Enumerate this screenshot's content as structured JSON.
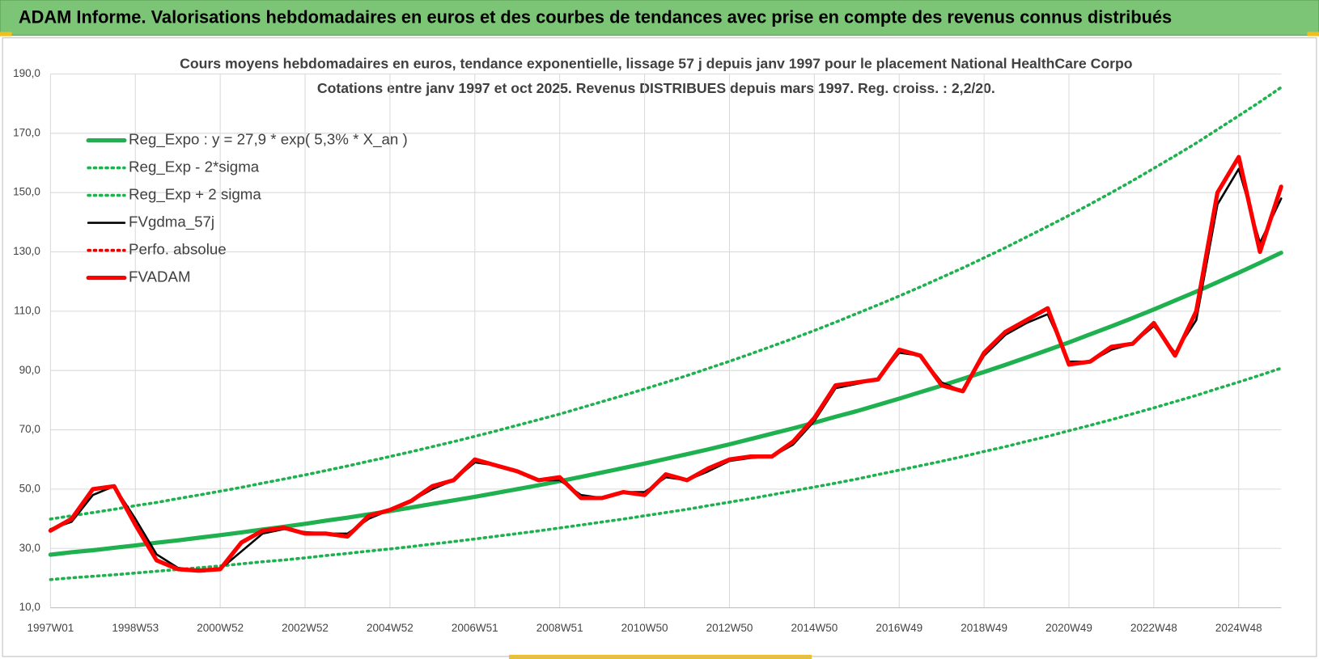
{
  "header": {
    "title": "ADAM Informe. Valorisations hebdomadaires en euros et des courbes de tendances avec prise en compte des revenus connus distribués"
  },
  "chart_data": {
    "type": "line",
    "title": "Cours moyens hebdomadaires en euros, tendance exponentielle, lissage 57 j depuis janv 1997 pour le placement National HealthCare Corpo",
    "subtitle": "Cotations entre janv 1997 et oct 2025. Revenus DISTRIBUES depuis mars 1997. Reg. croiss. : 2,2/20.",
    "categories": [
      "1997W01",
      null,
      null,
      null,
      "1998W53",
      null,
      null,
      null,
      "2000W52",
      null,
      null,
      null,
      "2002W52",
      null,
      null,
      null,
      "2004W52",
      null,
      null,
      null,
      "2006W51",
      null,
      null,
      null,
      "2008W51",
      null,
      null,
      null,
      "2010W50",
      null,
      null,
      null,
      "2012W50",
      null,
      null,
      null,
      "2014W50",
      null,
      null,
      null,
      "2016W49",
      null,
      null,
      null,
      "2018W49",
      null,
      null,
      null,
      "2020W49",
      null,
      null,
      null,
      "2022W48",
      null,
      null,
      null,
      "2024W48",
      null,
      null
    ],
    "ylim": [
      10,
      190
    ],
    "yticks": [
      {
        "value": 10,
        "label": "10,0"
      },
      {
        "value": 30,
        "label": "30,0"
      },
      {
        "value": 50,
        "label": "50,0"
      },
      {
        "value": 70,
        "label": "70,0"
      },
      {
        "value": 90,
        "label": "90,0"
      },
      {
        "value": 110,
        "label": "110,0"
      },
      {
        "value": 130,
        "label": "130,0"
      },
      {
        "value": 150,
        "label": "150,0"
      },
      {
        "value": 170,
        "label": "170,0"
      },
      {
        "value": 190,
        "label": "190,0"
      }
    ],
    "grid": true,
    "legend": "upper left",
    "series": [
      {
        "name": "Reg_Expo : y = 27,9 * exp( 5,3% *  X_an )",
        "color": "#1fb14f",
        "line_style": "thick",
        "values": [
          27.9,
          28.7,
          29.4,
          30.2,
          31.0,
          31.9,
          32.7,
          33.6,
          34.5,
          35.4,
          36.4,
          37.3,
          38.3,
          39.4,
          40.4,
          41.5,
          42.6,
          43.8,
          45.0,
          46.2,
          47.4,
          48.7,
          50.0,
          51.3,
          52.7,
          54.1,
          55.6,
          57.1,
          58.6,
          60.2,
          61.8,
          63.4,
          65.1,
          66.9,
          68.7,
          70.5,
          72.4,
          74.4,
          76.3,
          78.4,
          80.5,
          82.7,
          84.9,
          87.2,
          89.5,
          91.9,
          94.4,
          96.9,
          99.5,
          102.2,
          104.9,
          107.7,
          110.6,
          113.6,
          116.6,
          119.8,
          123.0,
          126.3,
          129.7
        ]
      },
      {
        "name": "Reg_Exp - 2*sigma",
        "color": "#1fb14f",
        "line_style": "dotted",
        "values": [
          19.5,
          20.1,
          20.6,
          21.1,
          21.7,
          22.3,
          22.9,
          23.5,
          24.1,
          24.8,
          25.5,
          26.1,
          26.8,
          27.6,
          28.3,
          29.1,
          29.8,
          30.6,
          31.5,
          32.3,
          33.2,
          34.1,
          35.0,
          35.9,
          36.9,
          37.9,
          38.9,
          39.9,
          41.0,
          42.1,
          43.2,
          44.4,
          45.6,
          46.8,
          48.1,
          49.4,
          50.7,
          52.0,
          53.4,
          54.9,
          56.4,
          57.9,
          59.4,
          61.0,
          62.7,
          64.3,
          66.1,
          67.8,
          69.7,
          71.5,
          73.4,
          75.4,
          77.4,
          79.5,
          81.6,
          83.9,
          86.1,
          88.4,
          90.8
        ]
      },
      {
        "name": "Reg_Exp + 2 sigma",
        "color": "#1fb14f",
        "line_style": "dotted",
        "values": [
          39.9,
          41.0,
          42.1,
          43.2,
          44.4,
          45.5,
          46.8,
          48.0,
          49.3,
          50.6,
          52.0,
          53.4,
          54.8,
          56.3,
          57.8,
          59.4,
          61.0,
          62.6,
          64.3,
          66.0,
          67.8,
          69.6,
          71.5,
          73.4,
          75.3,
          77.4,
          79.5,
          81.6,
          83.8,
          86.0,
          88.3,
          90.7,
          93.1,
          95.6,
          98.2,
          100.8,
          103.5,
          106.3,
          109.2,
          112.1,
          115.1,
          118.2,
          121.4,
          124.6,
          128.0,
          131.4,
          135.0,
          138.6,
          142.3,
          146.1,
          150.0,
          154.0,
          158.2,
          162.4,
          166.7,
          171.3,
          175.9,
          180.6,
          185.5
        ]
      },
      {
        "name": "FVgdma_57j",
        "color": "#000000",
        "line_style": "solid",
        "values": [
          36.5,
          39,
          48,
          51,
          40,
          28,
          23.5,
          22.5,
          23,
          29,
          35,
          36.5,
          35.5,
          35,
          35,
          40,
          43,
          46,
          50,
          53,
          59,
          58,
          56,
          53,
          53,
          48,
          47,
          49,
          49,
          54,
          53,
          56,
          59.5,
          60.5,
          61,
          65,
          73,
          84,
          85.5,
          87,
          96,
          95,
          86,
          83,
          95,
          102,
          106,
          109,
          93,
          93,
          97,
          99,
          105,
          96,
          107,
          146,
          158,
          133,
          148
        ]
      },
      {
        "name": "Perfo. absolue",
        "color": "#e00000",
        "line_style": "dotted",
        "values": [
          null,
          null,
          null,
          null,
          null,
          null,
          null,
          null,
          null,
          null,
          null,
          null,
          null,
          null,
          null,
          null,
          null,
          null,
          null,
          null,
          null,
          null,
          null,
          null,
          null,
          null,
          null,
          null,
          null,
          null,
          null,
          null,
          null,
          null,
          null,
          null,
          null,
          null,
          null,
          null,
          null,
          null,
          null,
          null,
          null,
          null,
          null,
          null,
          null,
          null,
          null,
          null,
          null,
          null,
          null,
          null,
          null,
          null,
          null
        ]
      },
      {
        "name": "FVADAM",
        "color": "#ff0000",
        "line_style": "thick",
        "values": [
          36,
          40,
          50,
          51,
          38,
          26,
          23,
          22.5,
          23,
          32,
          36,
          37,
          35,
          35,
          34,
          41,
          43,
          46,
          51,
          53,
          60,
          58,
          56,
          53,
          54,
          47,
          47,
          49,
          48,
          55,
          53,
          57,
          60,
          61,
          61,
          66,
          74,
          85,
          86,
          87,
          97,
          95,
          85,
          83,
          96,
          103,
          107,
          111,
          92,
          93,
          98,
          99,
          106,
          95,
          110,
          150,
          162,
          130,
          152
        ]
      }
    ]
  }
}
